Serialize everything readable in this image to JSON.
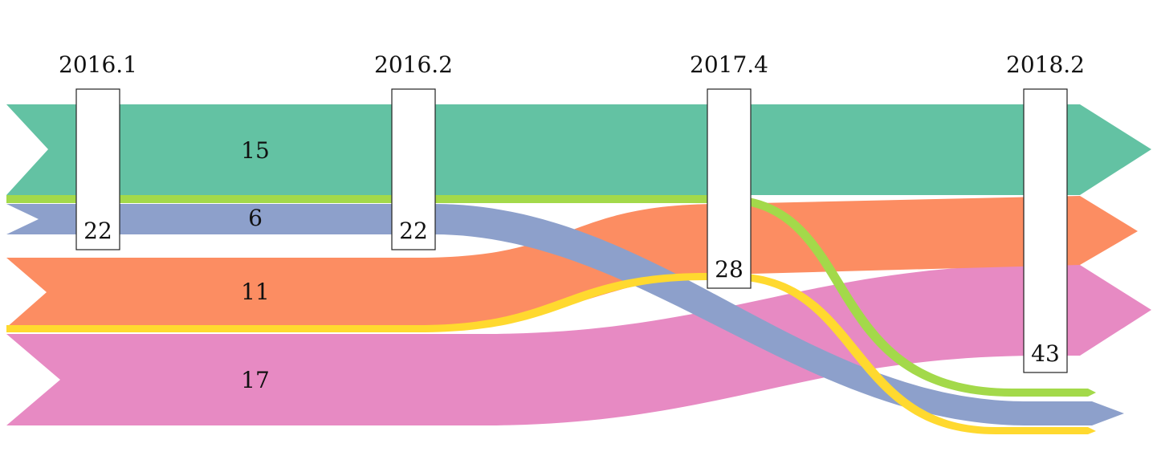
{
  "diagram": {
    "type": "alluvial",
    "stages": [
      "2016.1",
      "2016.2",
      "2017.4",
      "2018.2"
    ],
    "totals": [
      "22",
      "22",
      "28",
      "43"
    ],
    "flows": [
      {
        "id": "teal",
        "label": "15",
        "color": "#63c2a3"
      },
      {
        "id": "lime",
        "label": "",
        "color": "#a3d94a"
      },
      {
        "id": "blue",
        "label": "6",
        "color": "#8da0cb"
      },
      {
        "id": "orange",
        "label": "11",
        "color": "#fc8d62"
      },
      {
        "id": "yellow",
        "label": "",
        "color": "#ffd92f"
      },
      {
        "id": "pink",
        "label": "17",
        "color": "#e78ac3"
      }
    ]
  }
}
